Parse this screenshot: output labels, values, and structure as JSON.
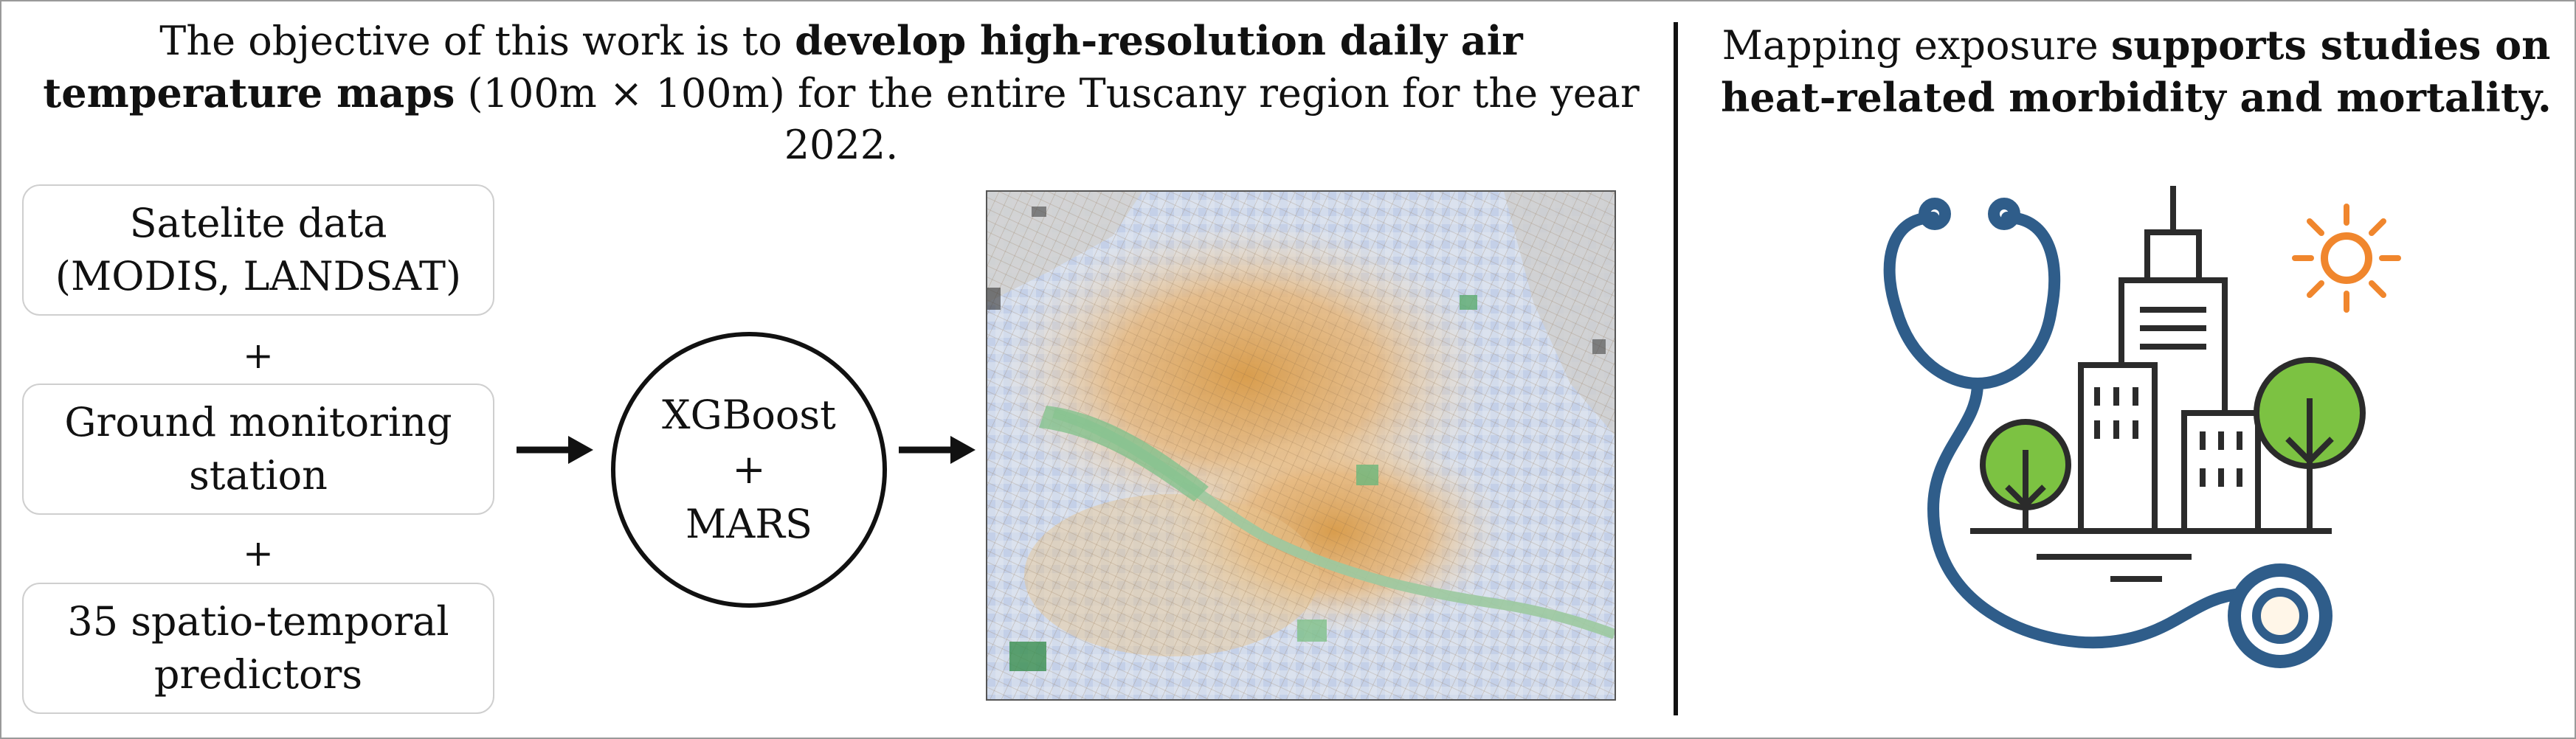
{
  "header": {
    "left_pre": "The objective of this work is to ",
    "left_bold": "develop high-resolution daily air temperature maps",
    "left_post": " (100m × 100m)  for the entire Tuscany region for the year 2022.",
    "right_pre": "Mapping exposure ",
    "right_bold": "supports studies on heat-related morbidity and mortality."
  },
  "inputs": [
    {
      "line1": "Satelite data",
      "line2": "(MODIS, LANDSAT)"
    },
    {
      "line1": "Ground monitoring",
      "line2": "station"
    },
    {
      "line1": "35 spatio-temporal",
      "line2": "predictors"
    }
  ],
  "plus_sign": "+",
  "model": {
    "line1": "XGBoost",
    "line2": "+",
    "line3": "MARS"
  },
  "colors": {
    "arrow": "#111111",
    "urban_orange": "#e5a95a",
    "cool_blue": "#aebfe2",
    "river_green": "#7fc08a",
    "illustration_blue": "#2f5d8a",
    "tree_green": "#7cc242",
    "sun_orange": "#f0862d"
  },
  "icons": [
    "stethoscope-icon",
    "city-buildings-icon",
    "tree-icon",
    "sun-icon"
  ]
}
